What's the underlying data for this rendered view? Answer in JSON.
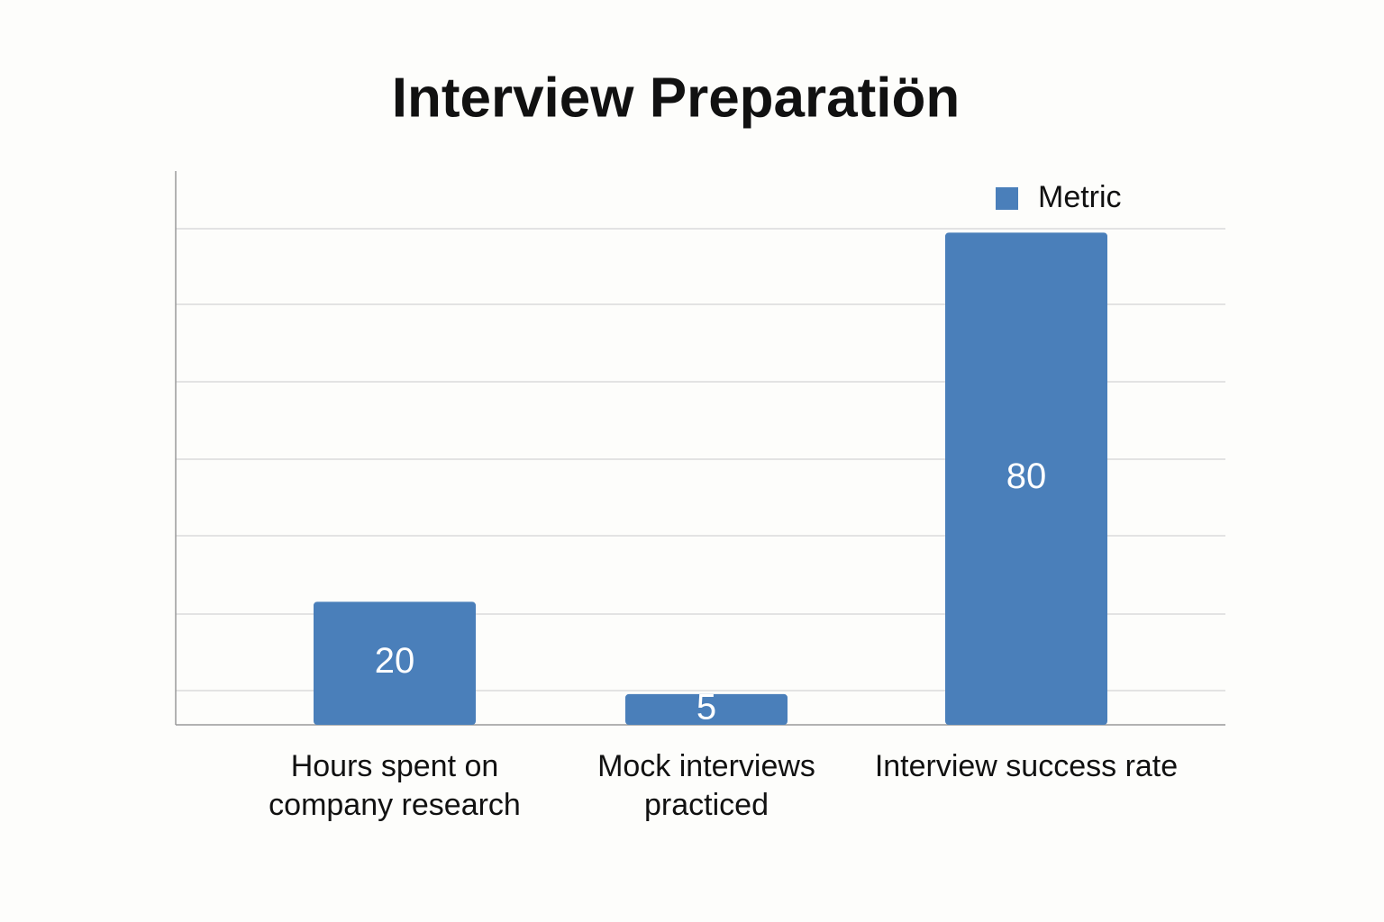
{
  "chart_data": {
    "type": "bar",
    "title": "Interview Preparatiön",
    "categories": [
      "Hours spent on company research",
      "Mock interviews practiced",
      "Interview success rate"
    ],
    "series": [
      {
        "name": "Metric",
        "color": "#4a7fba",
        "values": [
          20,
          5,
          80
        ]
      }
    ],
    "ylim": [
      0,
      90
    ],
    "legend": "top-right"
  }
}
